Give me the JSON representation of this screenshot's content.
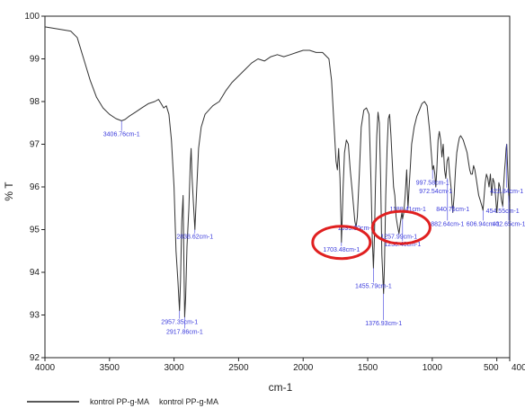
{
  "chart_data": {
    "type": "line",
    "xlabel": "cm-1",
    "ylabel": "% T",
    "xlim": [
      4000,
      400
    ],
    "ylim": [
      92,
      100
    ],
    "x_ticks": [
      "4000",
      "3500",
      "3000",
      "2500",
      "2000",
      "1500",
      "1000",
      "500",
      "400"
    ],
    "y_ticks": [
      "92",
      "93",
      "94",
      "95",
      "96",
      "97",
      "98",
      "99",
      "100"
    ],
    "series": [
      {
        "name": "kontrol PP-g-MA",
        "color": "#333333",
        "points": [
          [
            4000,
            99.75
          ],
          [
            3900,
            99.7
          ],
          [
            3800,
            99.65
          ],
          [
            3750,
            99.5
          ],
          [
            3700,
            99.0
          ],
          [
            3650,
            98.5
          ],
          [
            3600,
            98.1
          ],
          [
            3550,
            97.85
          ],
          [
            3500,
            97.7
          ],
          [
            3450,
            97.6
          ],
          [
            3406.76,
            97.55
          ],
          [
            3380,
            97.58
          ],
          [
            3350,
            97.65
          ],
          [
            3300,
            97.75
          ],
          [
            3250,
            97.85
          ],
          [
            3200,
            97.95
          ],
          [
            3150,
            98.0
          ],
          [
            3120,
            98.05
          ],
          [
            3100,
            97.95
          ],
          [
            3080,
            97.85
          ],
          [
            3060,
            97.9
          ],
          [
            3040,
            97.7
          ],
          [
            3020,
            97.1
          ],
          [
            3000,
            96.0
          ],
          [
            2985,
            94.5
          ],
          [
            2970,
            93.8
          ],
          [
            2957.35,
            93.1
          ],
          [
            2950,
            93.8
          ],
          [
            2940,
            95.2
          ],
          [
            2930,
            95.8
          ],
          [
            2925,
            94.5
          ],
          [
            2917.86,
            92.95
          ],
          [
            2910,
            93.4
          ],
          [
            2900,
            94.6
          ],
          [
            2885,
            95.5
          ],
          [
            2875,
            96.5
          ],
          [
            2868,
            96.9
          ],
          [
            2860,
            96.2
          ],
          [
            2850,
            95.6
          ],
          [
            2838.62,
            95.0
          ],
          [
            2825,
            95.9
          ],
          [
            2810,
            96.9
          ],
          [
            2790,
            97.4
          ],
          [
            2760,
            97.7
          ],
          [
            2700,
            97.9
          ],
          [
            2650,
            98.0
          ],
          [
            2600,
            98.25
          ],
          [
            2550,
            98.45
          ],
          [
            2500,
            98.6
          ],
          [
            2450,
            98.75
          ],
          [
            2400,
            98.9
          ],
          [
            2350,
            99.0
          ],
          [
            2300,
            98.95
          ],
          [
            2250,
            99.05
          ],
          [
            2200,
            99.1
          ],
          [
            2150,
            99.05
          ],
          [
            2100,
            99.1
          ],
          [
            2050,
            99.15
          ],
          [
            2000,
            99.2
          ],
          [
            1950,
            99.2
          ],
          [
            1900,
            99.15
          ],
          [
            1850,
            99.15
          ],
          [
            1800,
            99.0
          ],
          [
            1780,
            98.5
          ],
          [
            1760,
            97.4
          ],
          [
            1745,
            96.6
          ],
          [
            1735,
            96.4
          ],
          [
            1725,
            96.9
          ],
          [
            1715,
            96.2
          ],
          [
            1705,
            95.0
          ],
          [
            1703.48,
            94.7
          ],
          [
            1700,
            95.0
          ],
          [
            1690,
            96.0
          ],
          [
            1680,
            96.8
          ],
          [
            1665,
            97.1
          ],
          [
            1650,
            97.0
          ],
          [
            1635,
            96.4
          ],
          [
            1620,
            95.9
          ],
          [
            1600,
            95.2
          ],
          [
            1590,
            95.05
          ],
          [
            1580,
            95.3
          ],
          [
            1565,
            96.3
          ],
          [
            1550,
            97.4
          ],
          [
            1530,
            97.8
          ],
          [
            1510,
            97.85
          ],
          [
            1490,
            97.7
          ],
          [
            1475,
            96.2
          ],
          [
            1465,
            94.8
          ],
          [
            1455.79,
            94.1
          ],
          [
            1448,
            94.8
          ],
          [
            1440,
            96.0
          ],
          [
            1430,
            97.2
          ],
          [
            1420,
            97.75
          ],
          [
            1410,
            97.5
          ],
          [
            1400,
            96.2
          ],
          [
            1390,
            94.4
          ],
          [
            1376.93,
            93.5
          ],
          [
            1370,
            94.2
          ],
          [
            1360,
            95.8
          ],
          [
            1350,
            96.9
          ],
          [
            1340,
            97.6
          ],
          [
            1330,
            97.7
          ],
          [
            1320,
            97.2
          ],
          [
            1310,
            96.6
          ],
          [
            1300,
            96.0
          ],
          [
            1290,
            95.8
          ],
          [
            1280,
            95.3
          ],
          [
            1270,
            95.1
          ],
          [
            1257.99,
            94.9
          ],
          [
            1245,
            95.2
          ],
          [
            1235,
            95.4
          ],
          [
            1230,
            95.25
          ],
          [
            1220,
            95.4
          ],
          [
            1210,
            95.8
          ],
          [
            1198,
            96.4
          ],
          [
            1188.41,
            95.5
          ],
          [
            1175,
            96.2
          ],
          [
            1160,
            97.0
          ],
          [
            1140,
            97.4
          ],
          [
            1120,
            97.65
          ],
          [
            1100,
            97.8
          ],
          [
            1080,
            97.95
          ],
          [
            1060,
            98.0
          ],
          [
            1040,
            97.9
          ],
          [
            1020,
            97.3
          ],
          [
            1010,
            96.9
          ],
          [
            997.58,
            96.4
          ],
          [
            990,
            96.5
          ],
          [
            980,
            96.3
          ],
          [
            972.54,
            96.0
          ],
          [
            965,
            96.4
          ],
          [
            955,
            97.1
          ],
          [
            945,
            97.3
          ],
          [
            935,
            97.1
          ],
          [
            925,
            96.7
          ],
          [
            915,
            97.0
          ],
          [
            905,
            96.4
          ],
          [
            895,
            96.2
          ],
          [
            885,
            96.6
          ],
          [
            875,
            96.7
          ],
          [
            865,
            96.3
          ],
          [
            855,
            96.0
          ],
          [
            847,
            95.6
          ],
          [
            840.76,
            95.4
          ],
          [
            830,
            95.8
          ],
          [
            820,
            96.4
          ],
          [
            810,
            96.8
          ],
          [
            800,
            97.0
          ],
          [
            790,
            97.15
          ],
          [
            780,
            97.2
          ],
          [
            770,
            97.15
          ],
          [
            760,
            97.1
          ],
          [
            750,
            97.0
          ],
          [
            740,
            96.9
          ],
          [
            730,
            96.8
          ],
          [
            720,
            96.6
          ],
          [
            710,
            96.4
          ],
          [
            700,
            96.3
          ],
          [
            690,
            96.3
          ],
          [
            680,
            96.5
          ],
          [
            670,
            96.4
          ],
          [
            660,
            96.2
          ],
          [
            650,
            96.0
          ],
          [
            640,
            95.8
          ],
          [
            630,
            95.7
          ],
          [
            620,
            95.6
          ],
          [
            610,
            95.5
          ],
          [
            606.94,
            95.45
          ],
          [
            598,
            95.8
          ],
          [
            590,
            96.1
          ],
          [
            580,
            96.3
          ],
          [
            570,
            96.2
          ],
          [
            560,
            96.0
          ],
          [
            550,
            96.3
          ],
          [
            540,
            95.8
          ],
          [
            530,
            96.2
          ],
          [
            520,
            96.1
          ],
          [
            510,
            95.8
          ],
          [
            500,
            95.4
          ],
          [
            492,
            95.7
          ],
          [
            484,
            96.1
          ],
          [
            475,
            96.0
          ],
          [
            465,
            95.7
          ],
          [
            454.55,
            95.55
          ],
          [
            448,
            96.0
          ],
          [
            440,
            96.4
          ],
          [
            434,
            96.6
          ],
          [
            428,
            96.9
          ],
          [
            422.84,
            97.0
          ],
          [
            415,
            96.4
          ],
          [
            407,
            95.8
          ],
          [
            400,
            95.6
          ]
        ]
      }
    ],
    "peak_labels": [
      {
        "x": 3406.76,
        "y": 97.55,
        "text": "3406.76cm-1",
        "ty": 97.25
      },
      {
        "x": 2957.35,
        "y": 93.1,
        "text": "2957.35cm-1",
        "ty": 92.85
      },
      {
        "x": 2917.86,
        "y": 92.95,
        "text": "2917.86cm-1",
        "ty": 92.62
      },
      {
        "x": 2838.62,
        "y": 95.0,
        "text": "2838.62cm-1",
        "ty": 94.85
      },
      {
        "x": 1703.48,
        "y": 94.7,
        "text": "1703.48cm-1",
        "ty": 94.55
      },
      {
        "x": 1590,
        "y": 95.05,
        "text": "1593.50cm-1",
        "ty": 95.05
      },
      {
        "x": 1455.79,
        "y": 94.1,
        "text": "1455.79cm-1",
        "ty": 93.7
      },
      {
        "x": 1376.93,
        "y": 93.5,
        "text": "1376.93cm-1",
        "ty": 92.82
      },
      {
        "x": 1257.99,
        "y": 94.9,
        "text": "1257.99cm-1",
        "ty": 94.85
      },
      {
        "x": 1230,
        "y": 95.25,
        "text": "1230.40cm-1",
        "ty": 94.67
      },
      {
        "x": 1188.41,
        "y": 95.5,
        "text": "1188.41cm-1",
        "ty": 95.5
      },
      {
        "x": 997.58,
        "y": 96.4,
        "text": "997.58cm-1",
        "ty": 96.12
      },
      {
        "x": 972.54,
        "y": 96.0,
        "text": "972.54cm-1",
        "ty": 95.92
      },
      {
        "x": 840.76,
        "y": 95.4,
        "text": "840.76cm-1",
        "ty": 95.5
      },
      {
        "x": 882,
        "y": 96.2,
        "text": "882.64cm-1",
        "ty": 95.15
      },
      {
        "x": 606.94,
        "y": 95.45,
        "text": "606.94cm-1",
        "ty": 95.15
      },
      {
        "x": 454.55,
        "y": 95.55,
        "text": "454.55cm-1",
        "ty": 95.45
      },
      {
        "x": 422.84,
        "y": 97.0,
        "text": "422.84cm-1",
        "ty": 95.92
      },
      {
        "x": 407,
        "y": 95.8,
        "text": "402.65cm-1",
        "ty": 95.15
      }
    ],
    "highlights": [
      {
        "cx": 1703.48,
        "cy": 94.7,
        "color": "#e02020"
      },
      {
        "cx": 1240,
        "cy": 95.05,
        "color": "#e02020"
      }
    ],
    "legend": [
      {
        "label": "kontrol PP-g-MA"
      },
      {
        "label": "kontrol PP-g-MA"
      }
    ],
    "colors": {
      "line": "#333333",
      "label": "#3a3adc",
      "highlight": "#e02020",
      "axis": "#222222"
    }
  }
}
